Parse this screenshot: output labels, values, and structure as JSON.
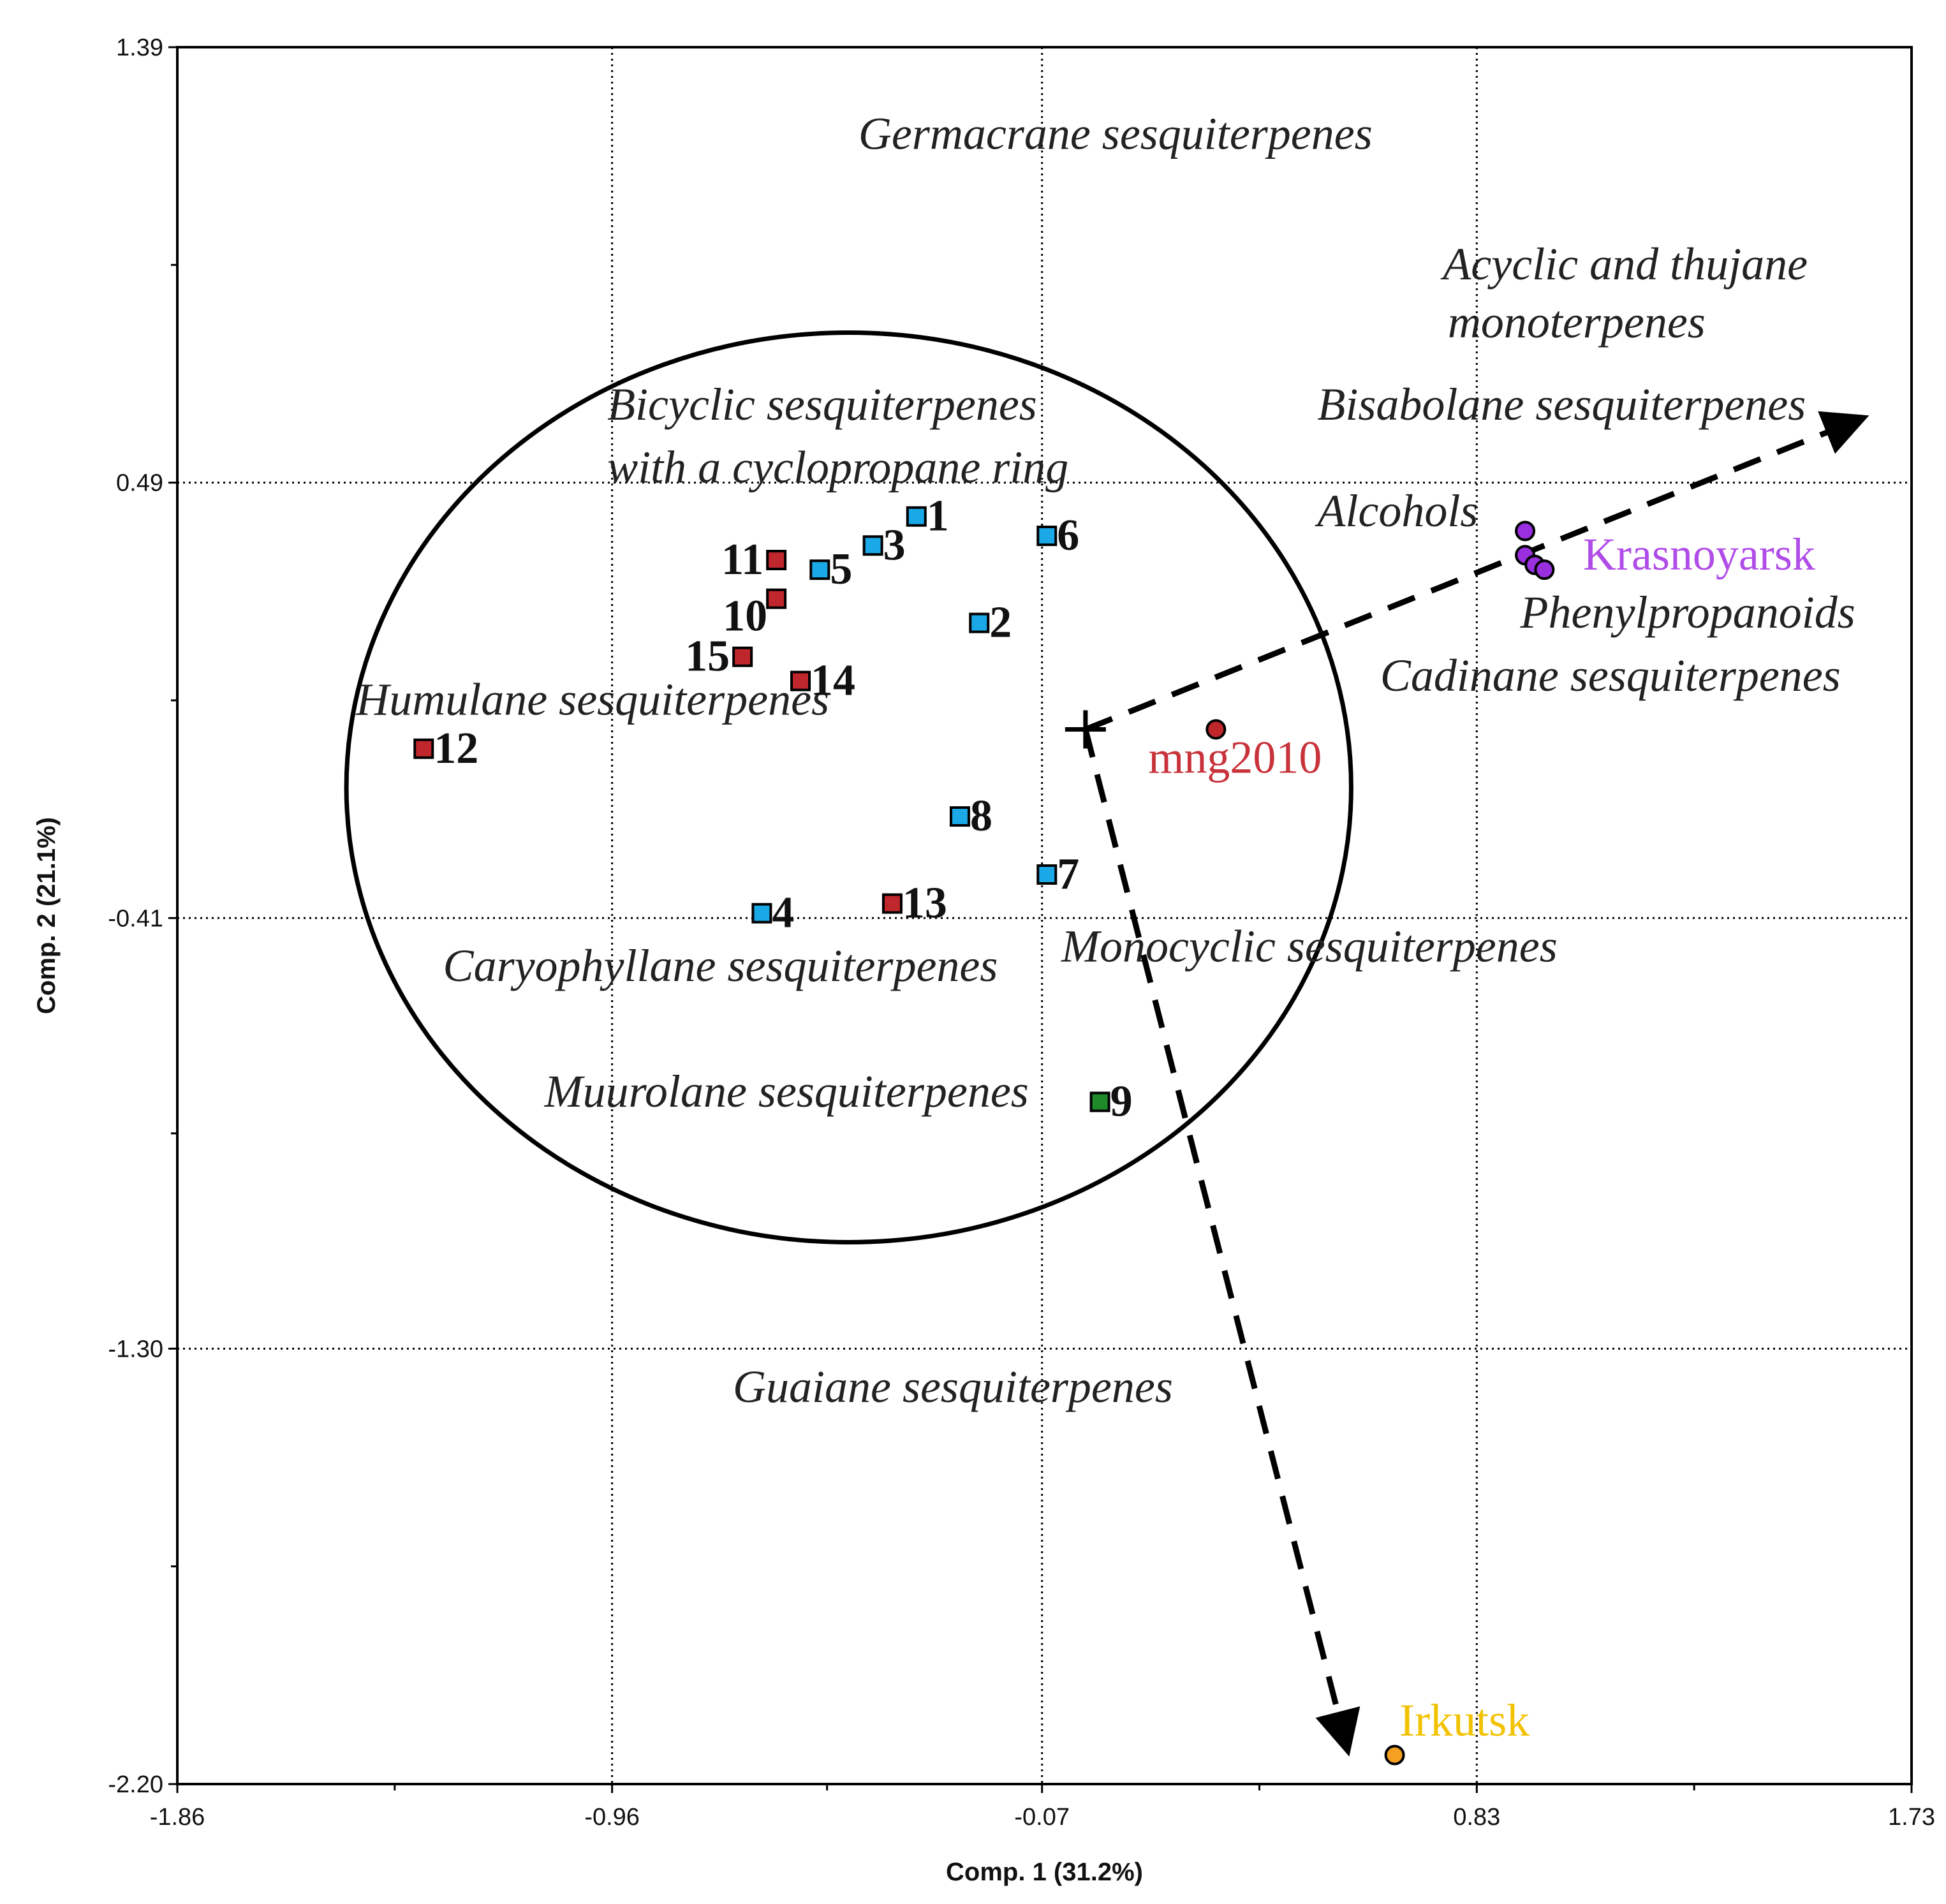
{
  "chart_data": {
    "type": "scatter",
    "title": "",
    "xlabel": "Comp. 1 (31.2%)",
    "ylabel": "Comp. 2 (21.1%)",
    "xlim": [
      -1.86,
      1.73
    ],
    "ylim": [
      -2.2,
      1.39
    ],
    "xticks": [
      "-1.86",
      "-0.96",
      "-0.07",
      "0.83",
      "1.73"
    ],
    "yticks": [
      "1.39",
      "0.49",
      "-0.41",
      "-1.30",
      "-2.20"
    ],
    "grid": true,
    "colors": {
      "blue": "#1ba8e6",
      "red": "#c0272d",
      "green": "#1f8a2a",
      "purple": "#9a2fe0",
      "orange": "#f5a020",
      "purple_text": "#b04ce8",
      "orange_text": "#f2c200",
      "red_text": "#c8323a"
    },
    "samples": [
      {
        "label": "1",
        "x": -0.33,
        "y": 0.42,
        "color": "blue",
        "label_side": "right"
      },
      {
        "label": "2",
        "x": -0.2,
        "y": 0.2,
        "color": "blue",
        "label_side": "right"
      },
      {
        "label": "3",
        "x": -0.42,
        "y": 0.36,
        "color": "blue",
        "label_side": "right"
      },
      {
        "label": "4",
        "x": -0.65,
        "y": -0.4,
        "color": "blue",
        "label_side": "right"
      },
      {
        "label": "5",
        "x": -0.53,
        "y": 0.31,
        "color": "blue",
        "label_side": "right"
      },
      {
        "label": "6",
        "x": -0.06,
        "y": 0.38,
        "color": "blue",
        "label_side": "right"
      },
      {
        "label": "7",
        "x": -0.06,
        "y": -0.32,
        "color": "blue",
        "label_side": "right"
      },
      {
        "label": "8",
        "x": -0.24,
        "y": -0.2,
        "color": "blue",
        "label_side": "right"
      },
      {
        "label": "9",
        "x": 0.05,
        "y": -0.79,
        "color": "green",
        "label_side": "right"
      },
      {
        "label": "10",
        "x": -0.62,
        "y": 0.25,
        "color": "red",
        "label_side": "left-below"
      },
      {
        "label": "11",
        "x": -0.62,
        "y": 0.33,
        "color": "red",
        "label_side": "left"
      },
      {
        "label": "12",
        "x": -1.35,
        "y": -0.06,
        "color": "red",
        "label_side": "right",
        "label_color": "red_text"
      },
      {
        "label": "13",
        "x": -0.38,
        "y": -0.38,
        "color": "red",
        "label_side": "right"
      },
      {
        "label": "14",
        "x": -0.57,
        "y": 0.08,
        "color": "red",
        "label_side": "right"
      },
      {
        "label": "15",
        "x": -0.69,
        "y": 0.13,
        "color": "red",
        "label_side": "left"
      }
    ],
    "groups": [
      {
        "label": "mng2010",
        "color": "red",
        "label_color": "red_text",
        "points": [
          [
            0.29,
            -0.02
          ]
        ],
        "label_at": [
          0.15,
          -0.11
        ]
      },
      {
        "label": "Krasnoyarsk",
        "color": "purple",
        "label_color": "purple_text",
        "points": [
          [
            0.93,
            0.39
          ],
          [
            0.93,
            0.34
          ],
          [
            0.95,
            0.32
          ],
          [
            0.97,
            0.31
          ]
        ],
        "label_at": [
          1.05,
          0.31
        ]
      },
      {
        "label": "Irkutsk",
        "color": "orange",
        "label_color": "orange_text",
        "points": [
          [
            0.66,
            -2.14
          ]
        ],
        "label_at": [
          0.67,
          -2.1
        ]
      }
    ],
    "vectors": {
      "origin": [
        0.02,
        -0.02
      ],
      "ends": [
        [
          1.62,
          0.62
        ],
        [
          0.56,
          -2.12
        ]
      ]
    },
    "ellipse": {
      "center": [
        -0.47,
        -0.14
      ],
      "rx": 1.04,
      "ry": 0.94
    },
    "annotations": [
      {
        "text": "Germacrane sesquiterpenes",
        "x": -0.45,
        "y": 1.18
      },
      {
        "text": "Acyclic and thujane",
        "x": 0.76,
        "y": 0.91
      },
      {
        "text": "monoterpenes",
        "x": 0.77,
        "y": 0.79
      },
      {
        "text": "Bisabolane sesquiterpenes",
        "x": 0.5,
        "y": 0.62
      },
      {
        "text": "Bicyclic sesquiterpenes",
        "x": -0.97,
        "y": 0.62
      },
      {
        "text": "with a cyclopropane ring",
        "x": -0.97,
        "y": 0.49
      },
      {
        "text": "Alcohols",
        "x": 0.5,
        "y": 0.4
      },
      {
        "text": "Phenylpropanoids",
        "x": 0.92,
        "y": 0.19
      },
      {
        "text": "Cadinane sesquiterpenes",
        "x": 0.63,
        "y": 0.06
      },
      {
        "text": "Humulane sesquiterpenes",
        "x": -1.49,
        "y": 0.01
      },
      {
        "text": "Monocyclic sesquiterpenes",
        "x": -0.03,
        "y": -0.5
      },
      {
        "text": "Caryophyllane sesquiterpenes",
        "x": -1.31,
        "y": -0.54
      },
      {
        "text": "Muurolane sesquiterpenes",
        "x": -1.1,
        "y": -0.8
      },
      {
        "text": "Guaiane sesquiterpenes",
        "x": -0.71,
        "y": -1.41
      }
    ]
  }
}
